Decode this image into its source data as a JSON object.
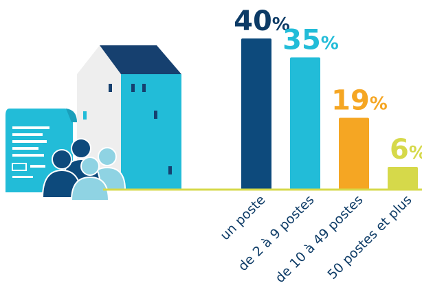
{
  "chart_data": {
    "type": "bar",
    "categories": [
      "un poste",
      "de 2 à 9 postes",
      "de 10 à 49 postes",
      "50 postes et plus"
    ],
    "values": [
      40,
      35,
      19,
      6
    ],
    "labels": [
      {
        "number": "40",
        "unit": "%"
      },
      {
        "number": "35",
        "unit": "%"
      },
      {
        "number": "19",
        "unit": "%"
      },
      {
        "number": "6",
        "unit": "%"
      }
    ],
    "colors": [
      "#0d4a7c",
      "#22bcd8",
      "#f5a623",
      "#d6d94a"
    ],
    "ylim": [
      0,
      40
    ],
    "grid": false,
    "legend": "none"
  },
  "illustration": {
    "icons": [
      "building-icon",
      "document-icon",
      "people-group-icon"
    ],
    "colors": {
      "roof": "#16406f",
      "facade": "#22bcd8",
      "wall_side": "#eeeeee",
      "document": "#22bcd8",
      "person_dark": "#0d4a7c",
      "person_light": "#8fd3e3",
      "baseline": "#d6d94a"
    }
  }
}
